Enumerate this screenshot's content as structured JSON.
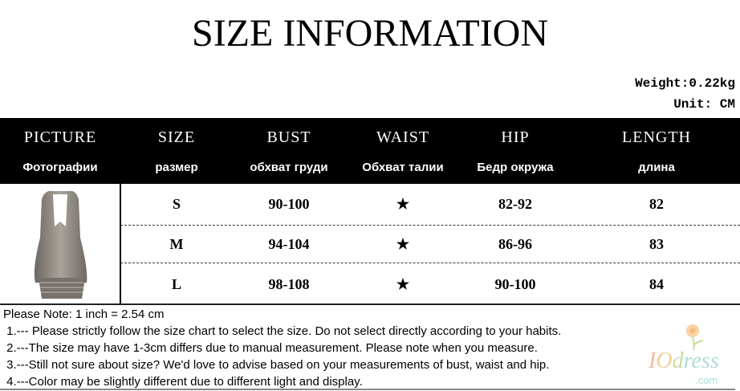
{
  "title": "SIZE INFORMATION",
  "weight": "Weight:0.22kg",
  "unit": "Unit: CM",
  "headers": [
    {
      "en": "PICTURE",
      "ru": "Фотографии"
    },
    {
      "en": "SIZE",
      "ru": "размер"
    },
    {
      "en": "BUST",
      "ru": "обхват груди"
    },
    {
      "en": "WAIST",
      "ru": "Обхват талии"
    },
    {
      "en": "HIP",
      "ru": "Бедр окружа"
    },
    {
      "en": "LENGTH",
      "ru": "длина"
    }
  ],
  "rows": [
    {
      "size": "S",
      "bust": "90-100",
      "waist": "★",
      "hip": "82-92",
      "length": "82"
    },
    {
      "size": "M",
      "bust": "94-104",
      "waist": "★",
      "hip": "86-96",
      "length": "83"
    },
    {
      "size": "L",
      "bust": "98-108",
      "waist": "★",
      "hip": "90-100",
      "length": "84"
    }
  ],
  "notes": [
    "Please Note: 1 inch = 2.54 cm",
    " 1.--- Please strictly follow the size chart to select the size. Do not select directly according to your habits.",
    " 2.---The size may have 1-3cm differs due to manual measurement. Please note when you measure.",
    " 3.---Still not sure about size? We'd love to advise based on your measurements of bust, waist and hip.",
    " 4.---Color may be slightly different due to different light and display."
  ],
  "watermark": {
    "brand": "IOdress",
    ".com": ".com"
  }
}
